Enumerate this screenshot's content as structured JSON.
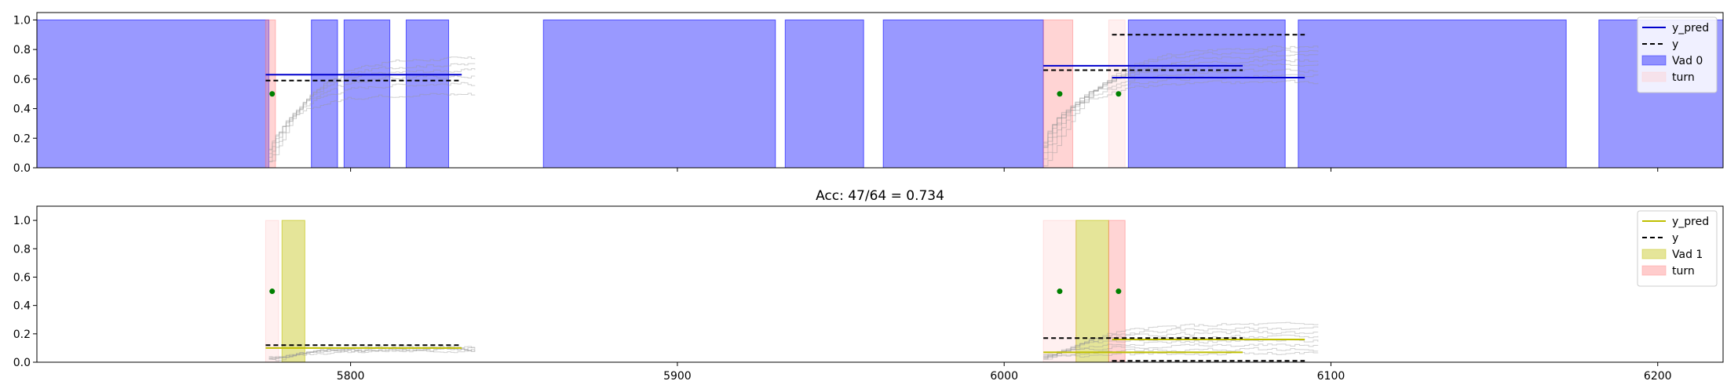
{
  "chart_data": [
    {
      "type": "line",
      "title": "",
      "xlabel": "",
      "ylabel": "",
      "xlim": [
        5704,
        6220
      ],
      "ylim": [
        0,
        1.05
      ],
      "xticks": [
        5800,
        5900,
        6000,
        6100,
        6200
      ],
      "show_xtick_labels": false,
      "yticks": [
        0.0,
        0.2,
        0.4,
        0.6,
        0.8,
        1.0
      ],
      "ytick_labels": [
        "0.0",
        "0.2",
        "0.4",
        "0.6",
        "0.8",
        "1.0"
      ],
      "legend": {
        "placement": "top-right",
        "entries": [
          {
            "label": "y_pred",
            "kind": "line",
            "color": "#0000cc",
            "dash": ""
          },
          {
            "label": "y",
            "kind": "line",
            "color": "#000000",
            "dash": "6,4"
          },
          {
            "label": "Vad 0",
            "kind": "patch",
            "color": "#0000ff",
            "opacity": 0.4
          },
          {
            "label": "turn",
            "kind": "patch",
            "color": "#ffcccc",
            "opacity": 0.4
          }
        ]
      },
      "vad_color": "#0000ff",
      "vad_opacity": 0.4,
      "vad_segments": [
        [
          5704,
          5775
        ],
        [
          5788,
          5796
        ],
        [
          5798,
          5812
        ],
        [
          5817,
          5830
        ],
        [
          5763,
          5763
        ],
        [
          5859,
          5930
        ],
        [
          5933,
          5957
        ],
        [
          5963,
          6012
        ],
        [
          6038,
          6086
        ],
        [
          6090,
          6172
        ],
        [
          6182,
          6220
        ]
      ],
      "turn_segments": [
        {
          "x": [
            5774,
            5777
          ],
          "opacity": 0.7
        },
        {
          "x": [
            6012,
            6021
          ],
          "opacity": 0.7
        },
        {
          "x": [
            6032,
            6037
          ],
          "opacity": 0.25
        }
      ],
      "series": [
        {
          "name": "y_pred",
          "color": "#0000cc",
          "dash": "",
          "segments": [
            [
              5774,
              5834,
              0.63
            ],
            [
              6012,
              6073,
              0.69
            ],
            [
              6033,
              6092,
              0.61
            ]
          ]
        },
        {
          "name": "y",
          "color": "#000000",
          "dash": "6,4",
          "segments": [
            [
              5774,
              5834,
              0.59
            ],
            [
              6012,
              6073,
              0.66
            ],
            [
              6033,
              6092,
              0.9
            ]
          ]
        }
      ],
      "points": [
        [
          5776,
          0.5
        ],
        [
          6017,
          0.5
        ],
        [
          6035,
          0.5
        ]
      ],
      "point_color": "#008000",
      "noise": [
        {
          "x0": 5775,
          "x1": 5838,
          "levels": [
            0.74,
            0.7,
            0.66,
            0.62,
            0.57,
            0.5
          ]
        },
        {
          "x0": 6012,
          "x1": 6096,
          "levels": [
            0.82,
            0.79,
            0.76,
            0.73,
            0.7,
            0.66,
            0.62,
            0.58
          ]
        }
      ]
    },
    {
      "type": "line",
      "title": "Acc: 47/64 = 0.734",
      "xlabel": "",
      "ylabel": "",
      "xlim": [
        5704,
        6220
      ],
      "ylim": [
        0,
        1.1
      ],
      "xticks": [
        5800,
        5900,
        6000,
        6100,
        6200
      ],
      "show_xtick_labels": true,
      "yticks": [
        0.0,
        0.2,
        0.4,
        0.6,
        0.8,
        1.0
      ],
      "ytick_labels": [
        "0.0",
        "0.2",
        "0.4",
        "0.6",
        "0.8",
        "1.0"
      ],
      "legend": {
        "placement": "top-right",
        "entries": [
          {
            "label": "y_pred",
            "kind": "line",
            "color": "#bfbf00",
            "dash": ""
          },
          {
            "label": "y",
            "kind": "line",
            "color": "#000000",
            "dash": "6,4"
          },
          {
            "label": "Vad 1",
            "kind": "patch",
            "color": "#bfbf00",
            "opacity": 0.4
          },
          {
            "label": "turn",
            "kind": "patch",
            "color": "#ff9999",
            "opacity": 0.5
          }
        ]
      },
      "vad_color": "#bfbf00",
      "vad_opacity": 0.4,
      "vad_segments": [
        [
          5779,
          5786
        ],
        [
          6022,
          6032
        ]
      ],
      "turn_segments": [
        {
          "x": [
            5774,
            5778
          ],
          "opacity": 0.25
        },
        {
          "x": [
            6012,
            6022
          ],
          "opacity": 0.25
        },
        {
          "x": [
            6032,
            6037
          ],
          "opacity": 0.7
        }
      ],
      "series": [
        {
          "name": "y_pred",
          "color": "#bfbf00",
          "dash": "",
          "segments": [
            [
              5774,
              5834,
              0.1
            ],
            [
              6012,
              6073,
              0.07
            ],
            [
              6033,
              6092,
              0.16
            ]
          ]
        },
        {
          "name": "y",
          "color": "#000000",
          "dash": "6,4",
          "segments": [
            [
              5774,
              5834,
              0.12
            ],
            [
              6012,
              6073,
              0.17
            ],
            [
              6033,
              6092,
              0.01
            ]
          ]
        }
      ],
      "points": [
        [
          5776,
          0.5
        ],
        [
          6017,
          0.5
        ],
        [
          6035,
          0.5
        ]
      ],
      "point_color": "#008000",
      "noise": [
        {
          "x0": 5775,
          "x1": 5838,
          "levels": [
            0.11,
            0.1,
            0.09,
            0.09,
            0.08
          ]
        },
        {
          "x0": 6012,
          "x1": 6096,
          "levels": [
            0.27,
            0.24,
            0.21,
            0.18,
            0.15,
            0.12,
            0.09,
            0.06
          ]
        }
      ]
    }
  ]
}
